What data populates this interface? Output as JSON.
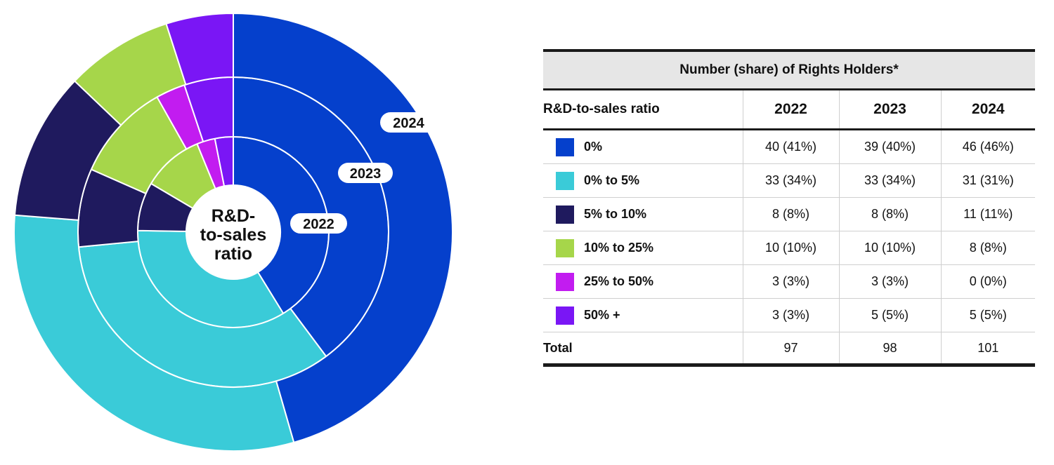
{
  "chart_data": {
    "type": "nested-donut",
    "center_label": [
      "R&D-",
      "to-sales",
      "ratio"
    ],
    "ring_labels": [
      "2022",
      "2023",
      "2024"
    ],
    "categories": [
      "0%",
      "0% to 5%",
      "5% to 10%",
      "10% to 25%",
      "25% to 50%",
      "50% +"
    ],
    "colors": [
      "#0540cc",
      "#3acbd8",
      "#1f1a5e",
      "#a6d64a",
      "#c21cf0",
      "#7a16f5"
    ],
    "series": [
      {
        "name": "2022",
        "values": [
          40,
          33,
          8,
          10,
          3,
          3
        ]
      },
      {
        "name": "2023",
        "values": [
          39,
          33,
          8,
          10,
          3,
          5
        ]
      },
      {
        "name": "2024",
        "values": [
          46,
          31,
          11,
          8,
          0,
          5
        ]
      }
    ]
  },
  "table": {
    "caption": "Number (share) of Rights Holders*",
    "header": [
      "R&D-to-sales ratio",
      "2022",
      "2023",
      "2024"
    ],
    "rows": [
      {
        "label": "0%",
        "color": "#0540cc",
        "cells": [
          "40 (41%)",
          "39 (40%)",
          "46 (46%)"
        ]
      },
      {
        "label": "0% to 5%",
        "color": "#3acbd8",
        "cells": [
          "33 (34%)",
          "33 (34%)",
          "31 (31%)"
        ]
      },
      {
        "label": "5% to 10%",
        "color": "#1f1a5e",
        "cells": [
          "8 (8%)",
          "8 (8%)",
          "11 (11%)"
        ]
      },
      {
        "label": "10% to 25%",
        "color": "#a6d64a",
        "cells": [
          "10 (10%)",
          "10 (10%)",
          "8 (8%)"
        ]
      },
      {
        "label": "25% to 50%",
        "color": "#c21cf0",
        "cells": [
          "3 (3%)",
          "3 (3%)",
          "0 (0%)"
        ]
      },
      {
        "label": "50% +",
        "color": "#7a16f5",
        "cells": [
          "3 (3%)",
          "5 (5%)",
          "5 (5%)"
        ]
      }
    ],
    "total": {
      "label": "Total",
      "cells": [
        "97",
        "98",
        "101"
      ]
    }
  }
}
